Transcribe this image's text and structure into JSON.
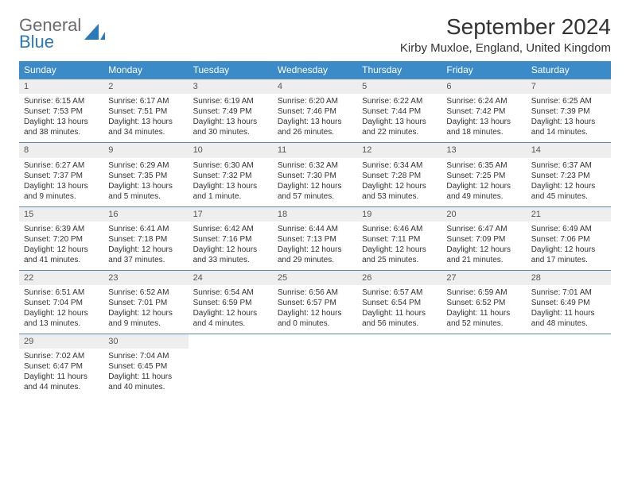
{
  "logo": {
    "line1": "General",
    "line2": "Blue",
    "shape_color": "#2a7ab9",
    "gray": "#6b6b6b"
  },
  "title": "September 2024",
  "location": "Kirby Muxloe, England, United Kingdom",
  "colors": {
    "header_bg": "#3b8bc8",
    "header_fg": "#ffffff",
    "daynum_bg": "#eeeeee",
    "row_border": "#5a8bb3"
  },
  "weekdays": [
    "Sunday",
    "Monday",
    "Tuesday",
    "Wednesday",
    "Thursday",
    "Friday",
    "Saturday"
  ],
  "days": [
    {
      "n": "1",
      "sr": "6:15 AM",
      "ss": "7:53 PM",
      "dl": "13 hours and 38 minutes."
    },
    {
      "n": "2",
      "sr": "6:17 AM",
      "ss": "7:51 PM",
      "dl": "13 hours and 34 minutes."
    },
    {
      "n": "3",
      "sr": "6:19 AM",
      "ss": "7:49 PM",
      "dl": "13 hours and 30 minutes."
    },
    {
      "n": "4",
      "sr": "6:20 AM",
      "ss": "7:46 PM",
      "dl": "13 hours and 26 minutes."
    },
    {
      "n": "5",
      "sr": "6:22 AM",
      "ss": "7:44 PM",
      "dl": "13 hours and 22 minutes."
    },
    {
      "n": "6",
      "sr": "6:24 AM",
      "ss": "7:42 PM",
      "dl": "13 hours and 18 minutes."
    },
    {
      "n": "7",
      "sr": "6:25 AM",
      "ss": "7:39 PM",
      "dl": "13 hours and 14 minutes."
    },
    {
      "n": "8",
      "sr": "6:27 AM",
      "ss": "7:37 PM",
      "dl": "13 hours and 9 minutes."
    },
    {
      "n": "9",
      "sr": "6:29 AM",
      "ss": "7:35 PM",
      "dl": "13 hours and 5 minutes."
    },
    {
      "n": "10",
      "sr": "6:30 AM",
      "ss": "7:32 PM",
      "dl": "13 hours and 1 minute."
    },
    {
      "n": "11",
      "sr": "6:32 AM",
      "ss": "7:30 PM",
      "dl": "12 hours and 57 minutes."
    },
    {
      "n": "12",
      "sr": "6:34 AM",
      "ss": "7:28 PM",
      "dl": "12 hours and 53 minutes."
    },
    {
      "n": "13",
      "sr": "6:35 AM",
      "ss": "7:25 PM",
      "dl": "12 hours and 49 minutes."
    },
    {
      "n": "14",
      "sr": "6:37 AM",
      "ss": "7:23 PM",
      "dl": "12 hours and 45 minutes."
    },
    {
      "n": "15",
      "sr": "6:39 AM",
      "ss": "7:20 PM",
      "dl": "12 hours and 41 minutes."
    },
    {
      "n": "16",
      "sr": "6:41 AM",
      "ss": "7:18 PM",
      "dl": "12 hours and 37 minutes."
    },
    {
      "n": "17",
      "sr": "6:42 AM",
      "ss": "7:16 PM",
      "dl": "12 hours and 33 minutes."
    },
    {
      "n": "18",
      "sr": "6:44 AM",
      "ss": "7:13 PM",
      "dl": "12 hours and 29 minutes."
    },
    {
      "n": "19",
      "sr": "6:46 AM",
      "ss": "7:11 PM",
      "dl": "12 hours and 25 minutes."
    },
    {
      "n": "20",
      "sr": "6:47 AM",
      "ss": "7:09 PM",
      "dl": "12 hours and 21 minutes."
    },
    {
      "n": "21",
      "sr": "6:49 AM",
      "ss": "7:06 PM",
      "dl": "12 hours and 17 minutes."
    },
    {
      "n": "22",
      "sr": "6:51 AM",
      "ss": "7:04 PM",
      "dl": "12 hours and 13 minutes."
    },
    {
      "n": "23",
      "sr": "6:52 AM",
      "ss": "7:01 PM",
      "dl": "12 hours and 9 minutes."
    },
    {
      "n": "24",
      "sr": "6:54 AM",
      "ss": "6:59 PM",
      "dl": "12 hours and 4 minutes."
    },
    {
      "n": "25",
      "sr": "6:56 AM",
      "ss": "6:57 PM",
      "dl": "12 hours and 0 minutes."
    },
    {
      "n": "26",
      "sr": "6:57 AM",
      "ss": "6:54 PM",
      "dl": "11 hours and 56 minutes."
    },
    {
      "n": "27",
      "sr": "6:59 AM",
      "ss": "6:52 PM",
      "dl": "11 hours and 52 minutes."
    },
    {
      "n": "28",
      "sr": "7:01 AM",
      "ss": "6:49 PM",
      "dl": "11 hours and 48 minutes."
    },
    {
      "n": "29",
      "sr": "7:02 AM",
      "ss": "6:47 PM",
      "dl": "11 hours and 44 minutes."
    },
    {
      "n": "30",
      "sr": "7:04 AM",
      "ss": "6:45 PM",
      "dl": "11 hours and 40 minutes."
    }
  ],
  "labels": {
    "sunrise": "Sunrise:",
    "sunset": "Sunset:",
    "daylight": "Daylight:"
  }
}
